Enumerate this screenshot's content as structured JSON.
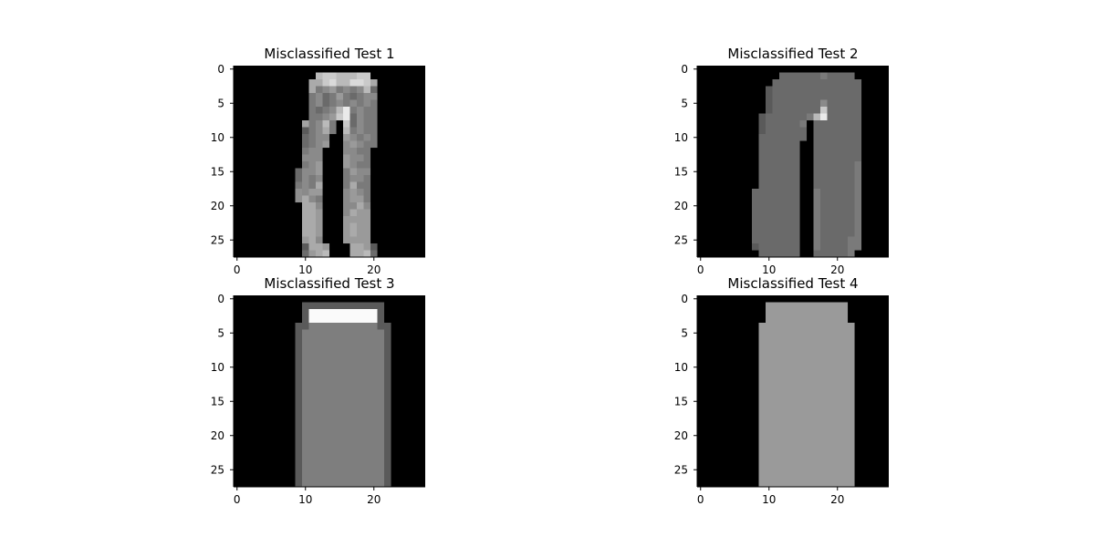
{
  "figure": {
    "background": "#ffffff",
    "colormap": "gray"
  },
  "chart_data": [
    {
      "type": "heatmap",
      "title": "Misclassified Test 1",
      "xlabel": "",
      "ylabel": "",
      "xlim": [
        -0.5,
        27.5
      ],
      "ylim": [
        27.5,
        -0.5
      ],
      "xticks": [
        0,
        10,
        20
      ],
      "yticks": [
        0,
        5,
        10,
        15,
        20,
        25
      ],
      "grid": false,
      "rows": [
        "0000000000000000000000000000",
        "000000000000ghhggghh00000000",
        "00000000000ffhiggiihf0000000",
        "00000000000fcdecdcdgb0000000",
        "00000000000cdbcecbcdd0000000",
        "00000000000cdbcdcdcdc0000000",
        "00000000000cbcdgjcdcc0000000",
        "00000000000ccdehjbdcc0000000",
        "00000000009cdgc0hbdcc0000000",
        "0000000000acdfc0gcdcc0000000",
        "0000000000bcdd00edcdc0000000",
        "0000000000bcde00dedcc0000000",
        "0000000000cdd000ddcc00000000",
        "0000000000ddd000eddc00000000",
        "0000000000cde000edcc00000000",
        "000000000bdde000cedd00000000",
        "000000000bdcd000cddc00000000",
        "000000000cdcf000cfcc00000000",
        "0000000008dee000dedc00000000",
        "0000000008fdc000deec00000000",
        "0000000000ffd000ddfd00000000",
        "0000000000ffe000dfee00000000",
        "0000000000ffe000eeee00000000",
        "0000000000ffe000efee00000000",
        "0000000000ffe000efee00000000",
        "0000000000efd000eeee00000000",
        "00000000005ffe000ffe50000000",
        "00000000006efg000ffg60000000"
      ]
    },
    {
      "type": "heatmap",
      "title": "Misclassified Test 2",
      "xlabel": "",
      "ylabel": "",
      "xlim": [
        -0.5,
        27.5
      ],
      "ylim": [
        27.5,
        -0.5
      ],
      "xticks": [
        0,
        10,
        20
      ],
      "yticks": [
        0,
        5,
        10,
        15,
        20,
        25
      ],
      "grid": false,
      "rows": [
        "0000000000000000000000000000",
        "000000000000bbbbbbcbbbb00000",
        "00000000000bbbbbbbbbbbbb0000",
        "0000000000abbbbbbbbbbbbb0000",
        "0000000000abbbbbbbbbbbbb0000",
        "0000000000abbbbbbbdbbbbb0000",
        "0000000000abbbbbbbhbbbbb0000",
        "000000000abbbbbbcgjbbbbb0000",
        "000000000abbbbbc0bbbbbbb0000",
        "000000000abbbbbb0bbbbbbb0000",
        "000000000bbbbbbb0bbbbbbb0000",
        "000000000bbbbbb00bbbbbbb0000",
        "000000000bbbbbb00bbbbbbb0000",
        "000000000bbbbbb00bbbbbbb0000",
        "000000000bbbbbb00bbbbbbc0000",
        "000000000bbbbbb00bbbbbbc0000",
        "000000000bbbbbb00bbbbbbc0000",
        "000000000bbbbbb00bbbbbbc0000",
        "00000000bbbbbbb00cbbbbbc0000",
        "00000000bbbbbbb00cbbbbbc0000",
        "00000000bbbbbbb00cbbbbbc0000",
        "00000000bbbbbbb00cbbbbbc0000",
        "00000000bbbbbbb00cbbbbbc0000",
        "00000000bbbbbbb00cbbbbbc0000",
        "00000000bbbbbbb00cbbbbbc0000",
        "00000000bbbbbbb00cbbbbcc0000",
        "00000000abbbbbb00cbbbbcc0000",
        "000000000bbbbbb00bbbbbc00000"
      ]
    },
    {
      "type": "heatmap",
      "title": "Misclassified Test 3",
      "xlabel": "",
      "ylabel": "",
      "xlim": [
        -0.5,
        27.5
      ],
      "ylim": [
        27.5,
        -0.5
      ],
      "xticks": [
        0,
        10,
        20
      ],
      "yticks": [
        0,
        5,
        10,
        15,
        20,
        25
      ],
      "grid": false,
      "rows": [
        "0000000000000000000000000000",
        "0000000000aaaaaaaaaaaa000000",
        "0000000000akkkkkkkkkka000000",
        "0000000000akkkkkkkkkka000000",
        "000000000aa7777777777aa00000",
        "000000000a777777777777a00000",
        "000000000a777777777777a00000",
        "000000000a777777777777a00000",
        "000000000a777777777777a00000",
        "000000000a777777777777a00000",
        "000000000a777777777777a00000",
        "000000000a777777777777a00000",
        "000000000a777777777777a00000",
        "000000000a777777777777a00000",
        "000000000a777777777777a00000",
        "000000000a777777777777a00000",
        "000000000a777777777777a00000",
        "000000000a777777777777a00000",
        "000000000a777777777777a00000",
        "000000000a777777777777a00000",
        "000000000a777777777777a00000",
        "000000000a777777777777a00000",
        "000000000a777777777777a00000",
        "000000000a777777777777a00000",
        "000000000a777777777777a00000",
        "000000000a777777777777a00000",
        "000000000a777777777777a00000",
        "000000000a777777777777a00000"
      ]
    },
    {
      "type": "heatmap",
      "title": "Misclassified Test 4",
      "xlabel": "",
      "ylabel": "",
      "xlim": [
        -0.5,
        27.5
      ],
      "ylim": [
        27.5,
        -0.5
      ],
      "xticks": [
        0,
        10,
        20
      ],
      "yticks": [
        0,
        5,
        10,
        15,
        20,
        25
      ],
      "grid": false,
      "rows": [
        "0000000000000000000000000000",
        "0000000000eeeeeeeeeeee000000",
        "0000000000eeeeeeeeeeee000000",
        "0000000000eeeeeeeeeeee000000",
        "000000000eeeeeeeeeeeeee00000",
        "000000000eeeeeeeeeeeeee00000",
        "000000000eeeeeeeeeeeeee00000",
        "000000000eeeeeeeeeeeeee00000",
        "000000000eeeeeeeeeeeeee00000",
        "000000000eeeeeeeeeeeeee00000",
        "000000000eeeeeeeeeeeeee00000",
        "000000000eeeeeeeeeeeeee00000",
        "000000000eeeeeeeeeeeeee00000",
        "000000000eeeeeeeeeeeeee00000",
        "000000000eeeeeeeeeeeeee00000",
        "000000000eeeeeeeeeeeeee00000",
        "000000000eeeeeeeeeeeeee00000",
        "000000000eeeeeeeeeeeeee00000",
        "000000000eeeeeeeeeeeeee00000",
        "000000000eeeeeeeeeeeeee00000",
        "000000000eeeeeeeeeeeeee00000",
        "000000000eeeeeeeeeeeeee00000",
        "000000000eeeeeeeeeeeeee00000",
        "000000000eeeeeeeeeeeeee00000",
        "000000000eeeeeeeeeeeeee00000",
        "000000000eeeeeeeeeeeeee00000",
        "000000000eeeeeeeeeeeeee00000",
        "000000000eeeeeeeeeeeeee00000"
      ]
    }
  ]
}
